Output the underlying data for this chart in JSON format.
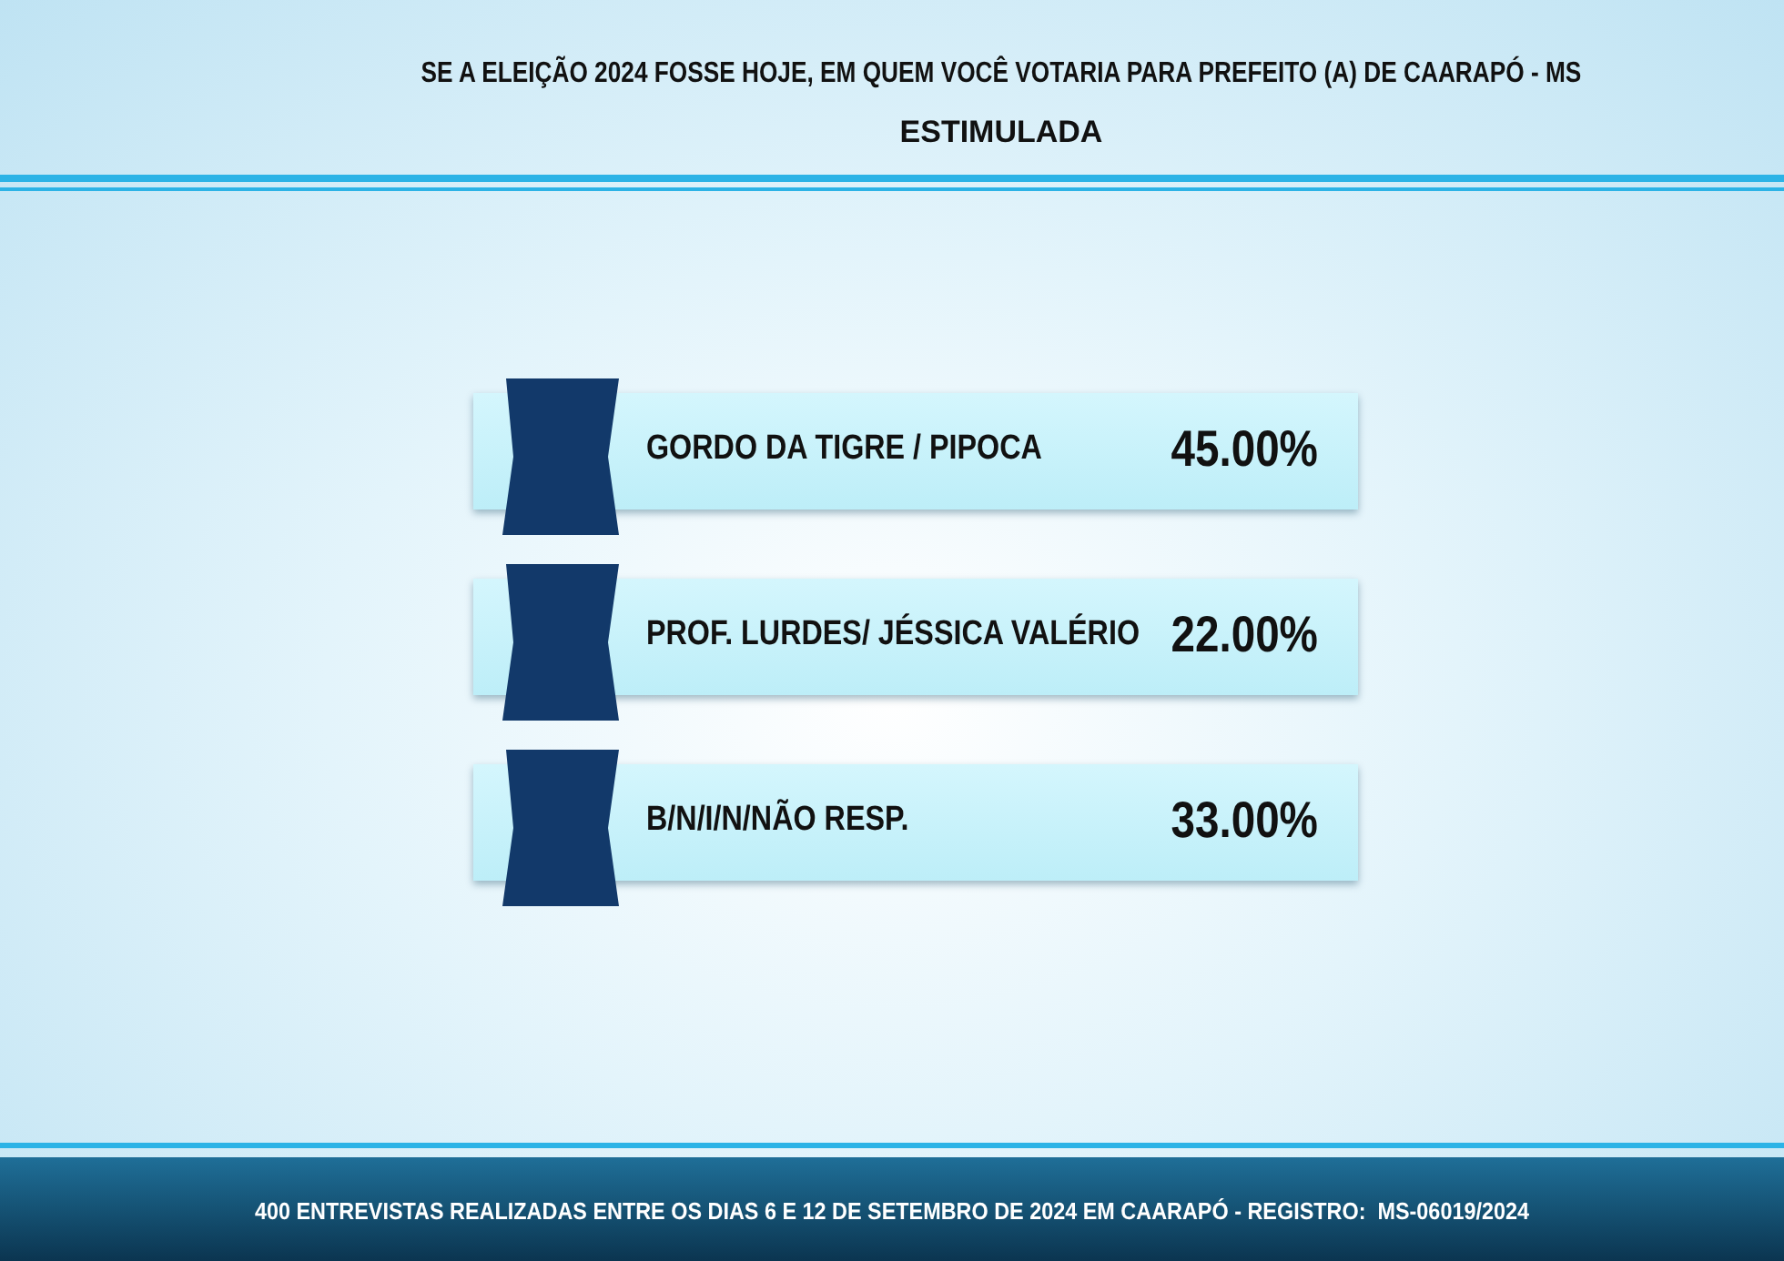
{
  "chart_data": {
    "type": "other",
    "title": "SE A ELEIÇÃO 2024 FOSSE HOJE, EM QUEM VOCÊ VOTARIA PARA PREFEITO (A) DE CAARAPÓ - MS",
    "subtitle": "ESTIMULADA",
    "categories": [
      "GORDO DA TIGRE / PIPOCA",
      "PROF. LURDES/ JÉSSICA VALÉRIO",
      "B/N/I/N/NÃO RESP."
    ],
    "values": [
      45,
      22,
      33
    ],
    "value_labels": [
      "45.00%",
      "22.00%",
      "33.00%"
    ],
    "annotations": [
      "400 ENTREVISTAS REALIZADAS ENTRE OS DIAS 6 E 12 DE SETEMBRO DE 2024 EM CAARAPÓ - REGISTRO:  MS-06019/2024"
    ]
  }
}
